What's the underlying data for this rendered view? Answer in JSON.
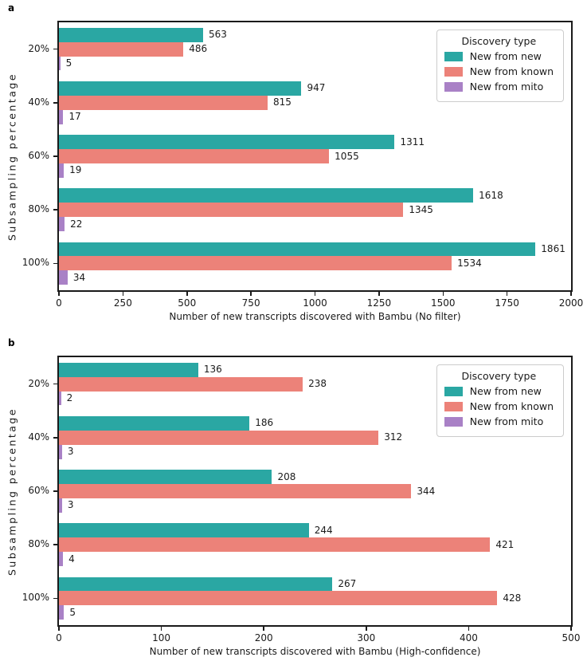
{
  "colors": {
    "new_from_new": "#2aa7a3",
    "new_from_known": "#ec8279",
    "new_from_mito": "#a981c6",
    "axis": "#1a1a1a",
    "legend_border": "#cccccc"
  },
  "chart_data": [
    {
      "type": "bar",
      "orientation": "horizontal",
      "panel_letter": "a",
      "xlabel": "Number of new transcripts discovered with Bambu (No filter)",
      "ylabel": "Subsampling percentage",
      "categories": [
        "20%",
        "40%",
        "60%",
        "80%",
        "100%"
      ],
      "series": [
        {
          "name": "New from new",
          "color": "#2aa7a3",
          "values": [
            563,
            947,
            1311,
            1618,
            1861
          ]
        },
        {
          "name": "New from known",
          "color": "#ec8279",
          "values": [
            486,
            815,
            1055,
            1345,
            1534
          ]
        },
        {
          "name": "New from mito",
          "color": "#a981c6",
          "values": [
            5,
            17,
            19,
            22,
            34
          ]
        }
      ],
      "xlim": [
        0,
        2000
      ],
      "xticks": [
        0,
        250,
        500,
        750,
        1000,
        1250,
        1500,
        1750,
        2000
      ],
      "grid": false,
      "bar_labels": true,
      "legend": {
        "title": "Discovery type",
        "position": "upper right"
      }
    },
    {
      "type": "bar",
      "orientation": "horizontal",
      "panel_letter": "b",
      "xlabel": "Number of new transcripts discovered with Bambu (High-confidence)",
      "ylabel": "Subsampling percentage",
      "categories": [
        "20%",
        "40%",
        "60%",
        "80%",
        "100%"
      ],
      "series": [
        {
          "name": "New from new",
          "color": "#2aa7a3",
          "values": [
            136,
            186,
            208,
            244,
            267
          ]
        },
        {
          "name": "New from known",
          "color": "#ec8279",
          "values": [
            238,
            312,
            344,
            421,
            428
          ]
        },
        {
          "name": "New from mito",
          "color": "#a981c6",
          "values": [
            2,
            3,
            3,
            4,
            5
          ]
        }
      ],
      "xlim": [
        0,
        500
      ],
      "xticks": [
        0,
        100,
        200,
        300,
        400,
        500
      ],
      "grid": false,
      "bar_labels": true,
      "legend": {
        "title": "Discovery type",
        "position": "upper right"
      }
    }
  ]
}
